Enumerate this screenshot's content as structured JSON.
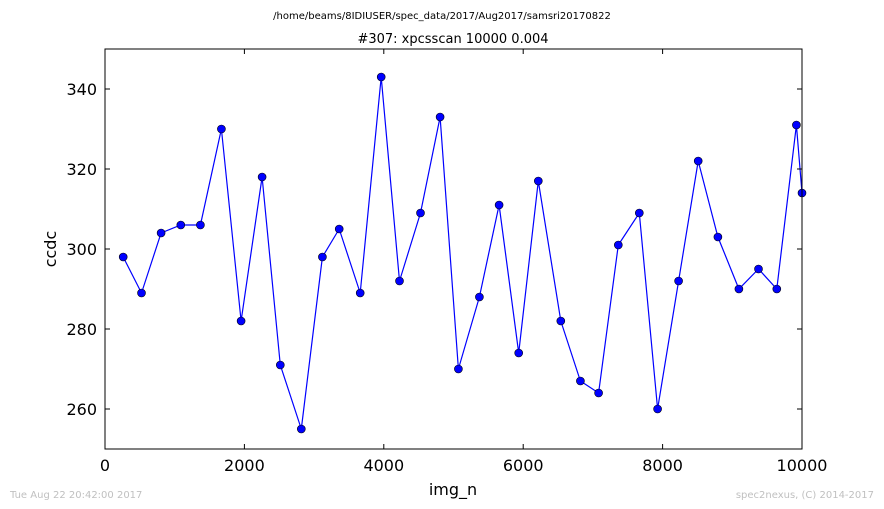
{
  "suptitle": "/home/beams/8IDIUSER/spec_data/2017/Aug2017/samsri20170822",
  "footer": {
    "timestamp": "Tue Aug 22 20:42:00 2017",
    "credit": "spec2nexus, (C) 2014-2017"
  },
  "chart_data": {
    "type": "line",
    "title": "#307: xpcsscan 10000 0.004",
    "xlabel": "img_n",
    "ylabel": "ccdc",
    "xlim": [
      0,
      10000
    ],
    "ylim": [
      250,
      350
    ],
    "xticks": [
      0,
      2000,
      4000,
      6000,
      8000,
      10000
    ],
    "yticks": [
      260,
      280,
      300,
      320,
      340
    ],
    "grid": false,
    "line_color": "#0000ff",
    "marker_color": "#0000ff",
    "series": [
      {
        "x": [
          261,
          523,
          805,
          1087,
          1369,
          1670,
          1952,
          2254,
          2515,
          2817,
          3119,
          3360,
          3662,
          3963,
          4225,
          4527,
          4808,
          5070,
          5372,
          5654,
          5935,
          6217,
          6539,
          6821,
          7082,
          7364,
          7666,
          7928,
          8229,
          8511,
          8793,
          9095,
          9376,
          9638,
          9920,
          10000
        ],
        "y": [
          298,
          289,
          304,
          306,
          306,
          330,
          282,
          318,
          271,
          255,
          298,
          305,
          289,
          343,
          292,
          309,
          333,
          270,
          288,
          311,
          274,
          317,
          282,
          267,
          264,
          301,
          309,
          260,
          292,
          322,
          303,
          290,
          295,
          290,
          331,
          314
        ]
      }
    ]
  }
}
